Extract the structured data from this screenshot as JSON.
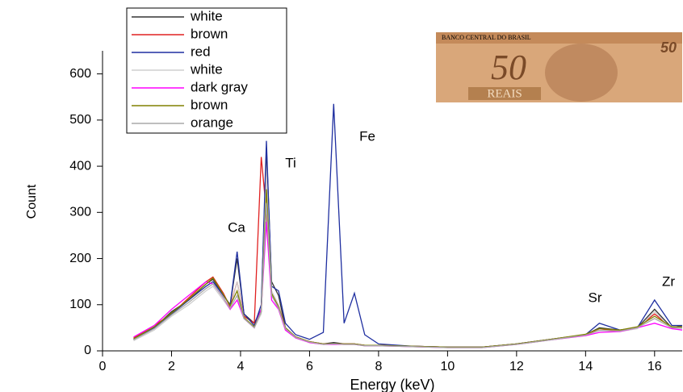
{
  "chart_data": {
    "type": "line",
    "x_label": "Energy (keV)",
    "y_label": "Count",
    "xlim": [
      0,
      16.8
    ],
    "ylim": [
      0,
      650
    ],
    "xticks": [
      0,
      2,
      4,
      6,
      8,
      10,
      12,
      14,
      16
    ],
    "yticks": [
      0,
      100,
      200,
      300,
      400,
      500,
      600
    ],
    "legend": "top-left",
    "annotations": [
      "Ca",
      "Ti",
      "Fe",
      "Sr",
      "Zr"
    ],
    "inset_texts": [
      "BANCO CENTRAL DO BRASIL",
      "50",
      "REAIS",
      "50"
    ],
    "x": [
      0.9,
      1.5,
      2,
      2.5,
      3,
      3.2,
      3.5,
      3.7,
      3.9,
      4.1,
      4.4,
      4.6,
      4.75,
      4.9,
      5.1,
      5.3,
      5.6,
      6,
      6.4,
      6.7,
      7,
      7.3,
      7.6,
      8,
      9,
      10,
      11,
      12,
      13,
      14,
      14.4,
      15,
      15.5,
      16,
      16.5,
      16.8
    ],
    "series": [
      {
        "name": "white",
        "color": "#333333",
        "values": [
          25,
          50,
          85,
          110,
          145,
          155,
          120,
          100,
          200,
          80,
          60,
          90,
          440,
          150,
          120,
          50,
          30,
          20,
          15,
          18,
          15,
          15,
          12,
          12,
          10,
          8,
          8,
          15,
          25,
          35,
          50,
          45,
          50,
          90,
          50,
          55
        ]
      },
      {
        "name": "brown",
        "color": "#e02020",
        "values": [
          28,
          55,
          80,
          115,
          150,
          160,
          125,
          95,
          150,
          75,
          60,
          420,
          300,
          120,
          100,
          50,
          30,
          20,
          15,
          15,
          15,
          15,
          12,
          12,
          10,
          8,
          8,
          15,
          25,
          35,
          45,
          45,
          50,
          80,
          50,
          50
        ]
      },
      {
        "name": "red",
        "color": "#1f2fa0",
        "values": [
          25,
          50,
          80,
          110,
          140,
          150,
          120,
          100,
          215,
          80,
          55,
          100,
          455,
          140,
          130,
          60,
          35,
          25,
          40,
          535,
          60,
          125,
          35,
          15,
          10,
          8,
          8,
          15,
          25,
          35,
          60,
          45,
          50,
          110,
          55,
          55
        ]
      },
      {
        "name": "white",
        "color": "#cfcfcf",
        "values": [
          22,
          45,
          75,
          100,
          130,
          140,
          110,
          90,
          150,
          70,
          50,
          80,
          380,
          130,
          100,
          45,
          28,
          18,
          14,
          15,
          14,
          14,
          11,
          11,
          9,
          7,
          7,
          14,
          24,
          33,
          45,
          42,
          48,
          85,
          48,
          48
        ]
      },
      {
        "name": "dark gray",
        "color": "#ff00ff",
        "values": [
          30,
          55,
          90,
          120,
          150,
          145,
          115,
          90,
          110,
          70,
          50,
          90,
          280,
          110,
          90,
          45,
          28,
          18,
          14,
          14,
          14,
          14,
          11,
          11,
          9,
          7,
          7,
          14,
          24,
          33,
          40,
          42,
          50,
          60,
          48,
          45
        ]
      },
      {
        "name": "brown",
        "color": "#808000",
        "values": [
          26,
          52,
          82,
          112,
          145,
          158,
          122,
          98,
          130,
          72,
          52,
          85,
          350,
          125,
          95,
          50,
          30,
          20,
          15,
          15,
          15,
          15,
          12,
          12,
          10,
          8,
          8,
          15,
          25,
          36,
          48,
          45,
          52,
          75,
          52,
          52
        ]
      },
      {
        "name": "orange",
        "color": "#a8a8a8",
        "values": [
          24,
          48,
          78,
          105,
          135,
          145,
          115,
          92,
          120,
          70,
          50,
          85,
          320,
          120,
          92,
          48,
          29,
          19,
          14,
          15,
          14,
          14,
          11,
          11,
          9,
          7,
          7,
          14,
          24,
          34,
          44,
          43,
          50,
          70,
          50,
          50
        ]
      }
    ]
  }
}
